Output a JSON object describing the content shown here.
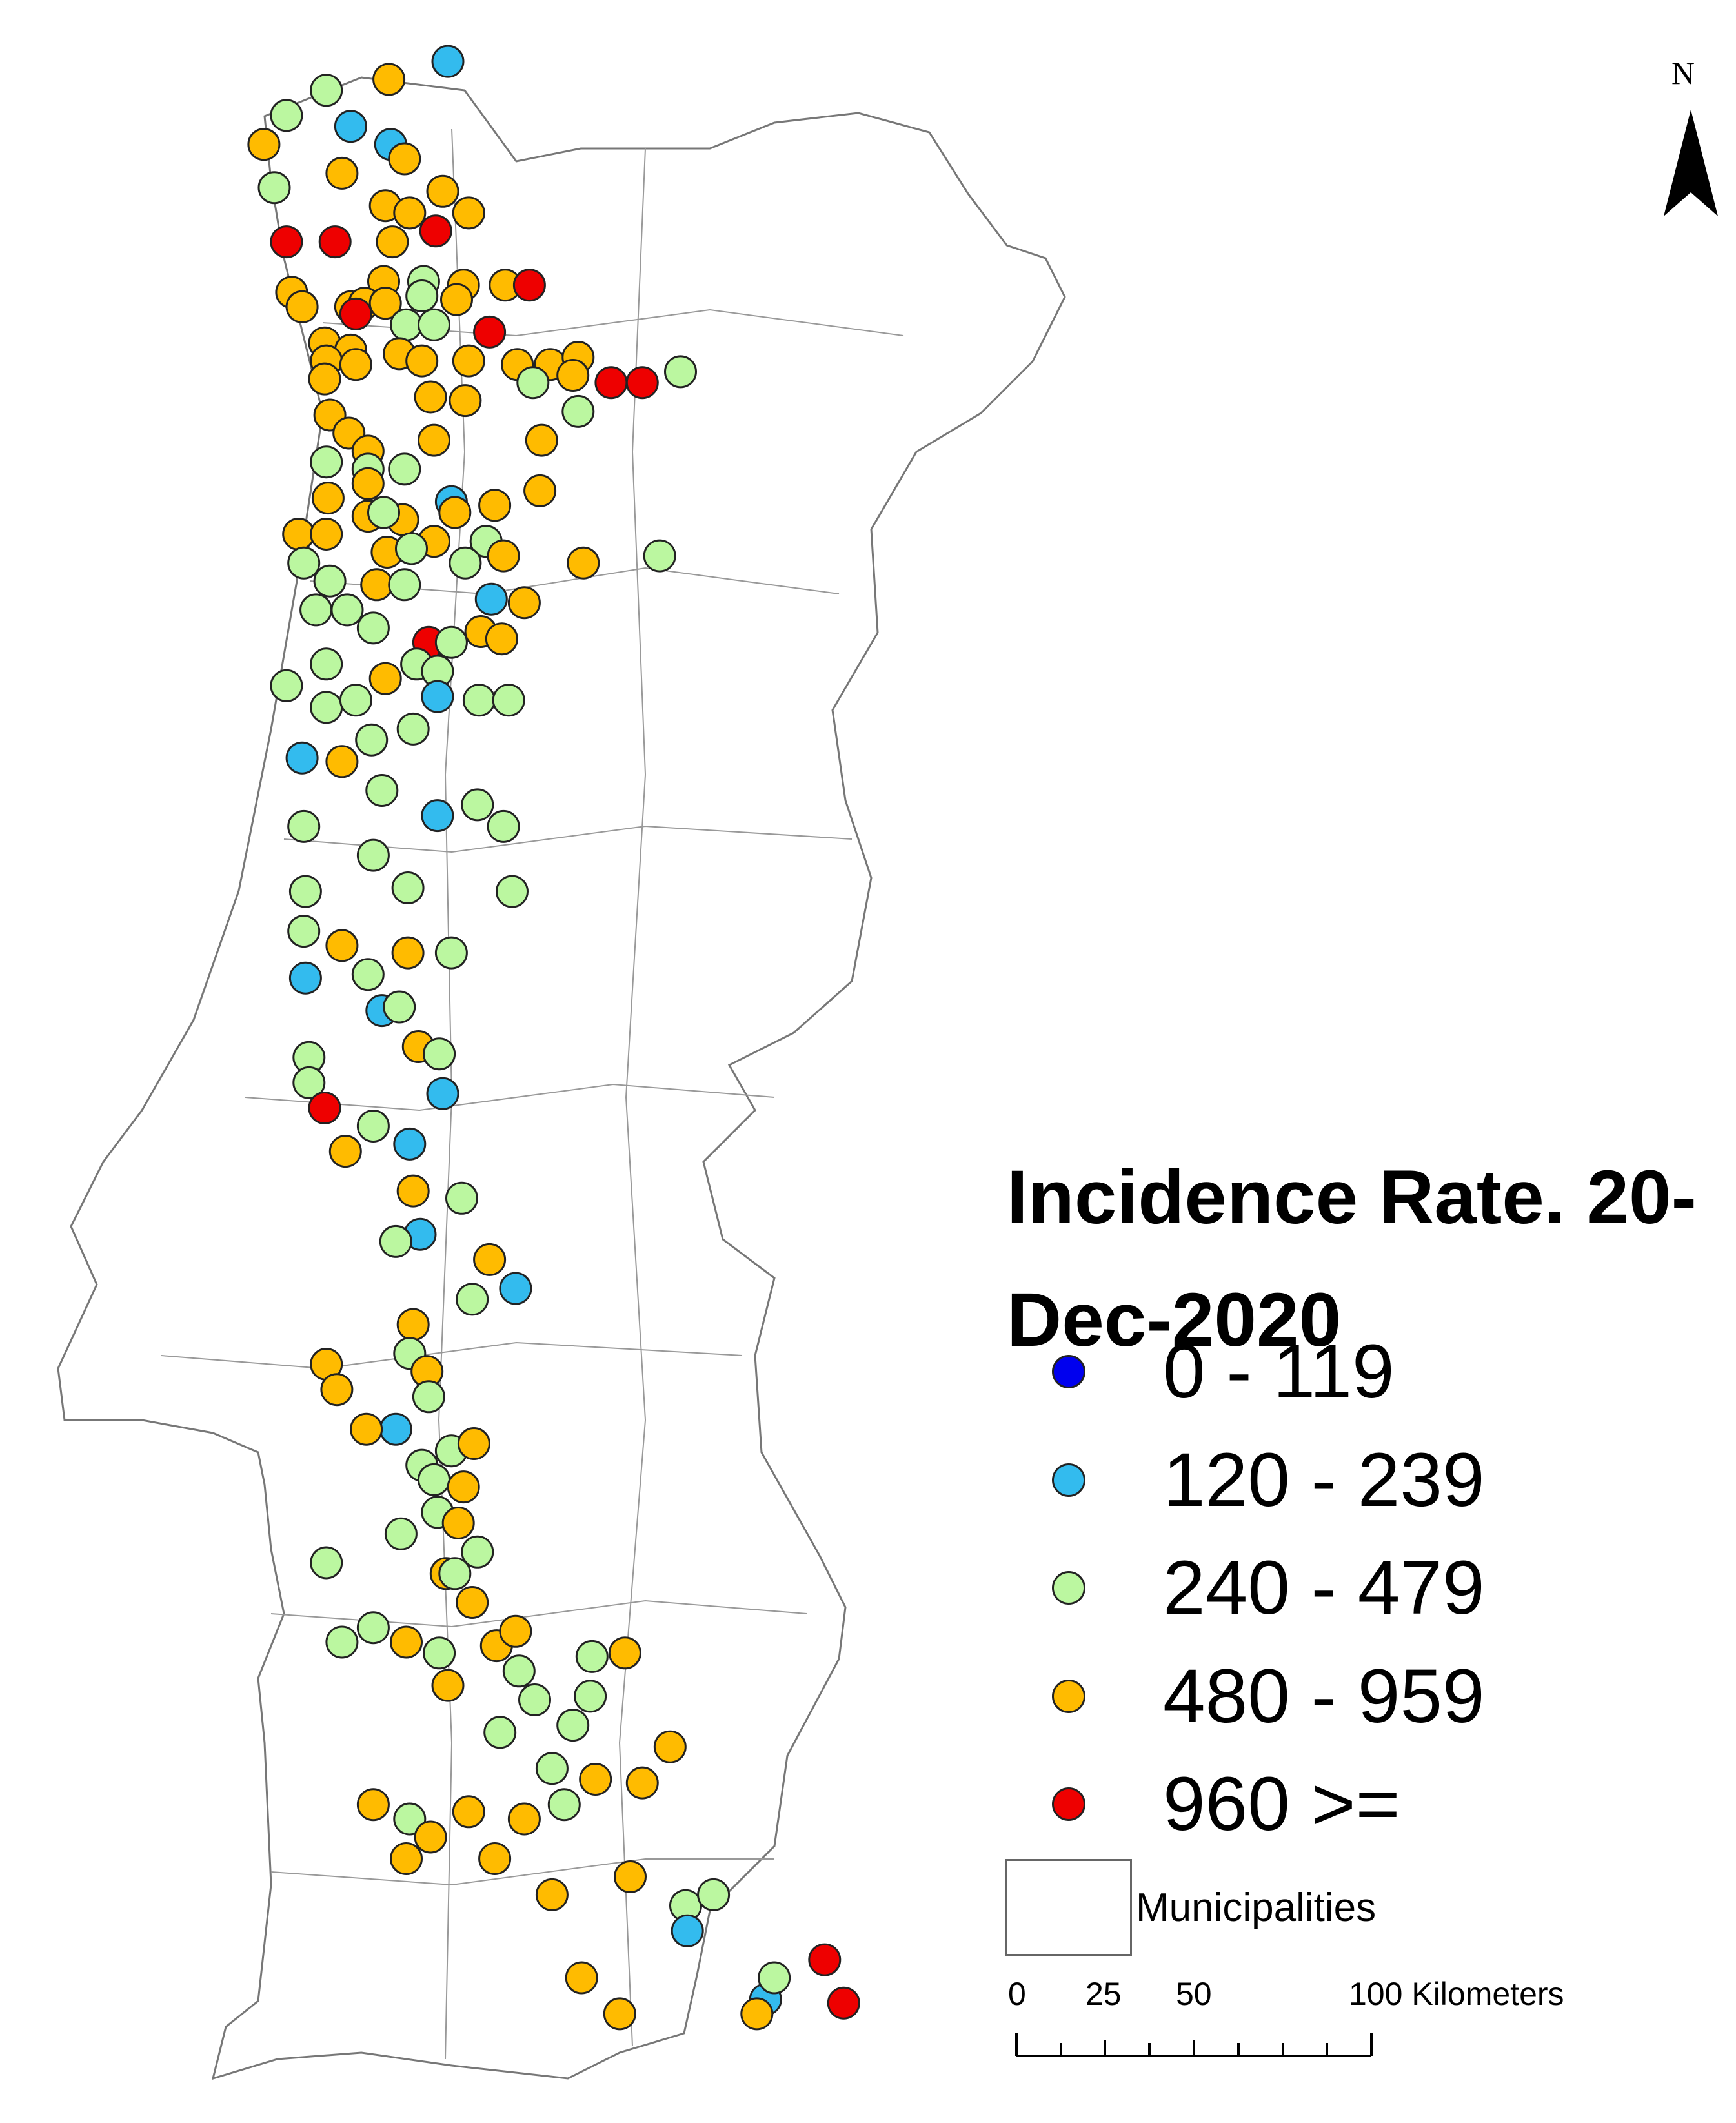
{
  "legend": {
    "title": "Incidence Rate. 20-Dec-2020",
    "classes": [
      {
        "label": "0 - 119",
        "color": "#0000ee"
      },
      {
        "label": "120 - 239",
        "color": "#33bbee"
      },
      {
        "label": "240 - 479",
        "color": "#bbf7a0"
      },
      {
        "label": "480 - 959",
        "color": "#ffbb00"
      },
      {
        "label": "960 >=",
        "color": "#ee0000"
      }
    ],
    "municipalities_label": "Municipalities"
  },
  "scale_bar": {
    "ticks": [
      "0",
      "25",
      "50",
      "100"
    ],
    "unit": "Kilometers"
  },
  "north_arrow": {
    "label": "N",
    "icon": "north-arrow-icon"
  },
  "map": {
    "region": "Portugal mainland municipalities",
    "outline_color": "#777777"
  },
  "chart_data": {
    "type": "scatter",
    "title": "Incidence Rate. 20-Dec-2020",
    "classes": [
      "0 - 119",
      "120 - 239",
      "240 - 479",
      "480 - 959",
      "960 >="
    ],
    "points": [
      [
        0.258,
        0.017,
        1
      ],
      [
        0.224,
        0.022,
        3
      ],
      [
        0.188,
        0.025,
        2
      ],
      [
        0.165,
        0.032,
        2
      ],
      [
        0.202,
        0.035,
        1
      ],
      [
        0.225,
        0.04,
        1
      ],
      [
        0.233,
        0.044,
        3
      ],
      [
        0.152,
        0.04,
        3
      ],
      [
        0.197,
        0.048,
        3
      ],
      [
        0.158,
        0.052,
        2
      ],
      [
        0.255,
        0.053,
        3
      ],
      [
        0.222,
        0.057,
        3
      ],
      [
        0.236,
        0.059,
        3
      ],
      [
        0.27,
        0.059,
        3
      ],
      [
        0.165,
        0.067,
        4
      ],
      [
        0.193,
        0.067,
        4
      ],
      [
        0.226,
        0.067,
        3
      ],
      [
        0.251,
        0.064,
        4
      ],
      [
        0.221,
        0.078,
        3
      ],
      [
        0.244,
        0.078,
        2
      ],
      [
        0.267,
        0.079,
        3
      ],
      [
        0.291,
        0.079,
        3
      ],
      [
        0.305,
        0.079,
        4
      ],
      [
        0.168,
        0.081,
        3
      ],
      [
        0.174,
        0.085,
        3
      ],
      [
        0.202,
        0.085,
        3
      ],
      [
        0.21,
        0.084,
        3
      ],
      [
        0.222,
        0.084,
        3
      ],
      [
        0.243,
        0.082,
        2
      ],
      [
        0.263,
        0.083,
        3
      ],
      [
        0.205,
        0.087,
        4
      ],
      [
        0.234,
        0.09,
        2
      ],
      [
        0.25,
        0.09,
        2
      ],
      [
        0.282,
        0.092,
        4
      ],
      [
        0.187,
        0.095,
        3
      ],
      [
        0.202,
        0.097,
        3
      ],
      [
        0.188,
        0.1,
        3
      ],
      [
        0.23,
        0.098,
        3
      ],
      [
        0.243,
        0.1,
        3
      ],
      [
        0.27,
        0.1,
        3
      ],
      [
        0.298,
        0.101,
        3
      ],
      [
        0.317,
        0.101,
        3
      ],
      [
        0.333,
        0.099,
        3
      ],
      [
        0.187,
        0.105,
        3
      ],
      [
        0.205,
        0.101,
        3
      ],
      [
        0.248,
        0.11,
        3
      ],
      [
        0.268,
        0.111,
        3
      ],
      [
        0.307,
        0.106,
        2
      ],
      [
        0.33,
        0.104,
        3
      ],
      [
        0.352,
        0.106,
        4
      ],
      [
        0.37,
        0.106,
        4
      ],
      [
        0.392,
        0.103,
        2
      ],
      [
        0.19,
        0.115,
        3
      ],
      [
        0.201,
        0.12,
        3
      ],
      [
        0.212,
        0.125,
        3
      ],
      [
        0.25,
        0.122,
        3
      ],
      [
        0.312,
        0.122,
        3
      ],
      [
        0.333,
        0.114,
        2
      ],
      [
        0.188,
        0.128,
        2
      ],
      [
        0.212,
        0.13,
        2
      ],
      [
        0.212,
        0.134,
        3
      ],
      [
        0.233,
        0.13,
        2
      ],
      [
        0.189,
        0.138,
        3
      ],
      [
        0.232,
        0.144,
        3
      ],
      [
        0.26,
        0.139,
        1
      ],
      [
        0.285,
        0.14,
        3
      ],
      [
        0.311,
        0.136,
        3
      ],
      [
        0.172,
        0.148,
        3
      ],
      [
        0.188,
        0.148,
        3
      ],
      [
        0.212,
        0.143,
        3
      ],
      [
        0.221,
        0.142,
        2
      ],
      [
        0.25,
        0.15,
        3
      ],
      [
        0.262,
        0.142,
        3
      ],
      [
        0.175,
        0.156,
        2
      ],
      [
        0.19,
        0.161,
        2
      ],
      [
        0.223,
        0.153,
        3
      ],
      [
        0.237,
        0.152,
        2
      ],
      [
        0.28,
        0.15,
        2
      ],
      [
        0.217,
        0.162,
        3
      ],
      [
        0.233,
        0.162,
        2
      ],
      [
        0.268,
        0.156,
        2
      ],
      [
        0.29,
        0.154,
        3
      ],
      [
        0.336,
        0.156,
        3
      ],
      [
        0.38,
        0.154,
        2
      ],
      [
        0.182,
        0.169,
        2
      ],
      [
        0.2,
        0.169,
        2
      ],
      [
        0.215,
        0.174,
        2
      ],
      [
        0.283,
        0.166,
        1
      ],
      [
        0.302,
        0.167,
        3
      ],
      [
        0.247,
        0.178,
        4
      ],
      [
        0.26,
        0.178,
        2
      ],
      [
        0.277,
        0.175,
        3
      ],
      [
        0.289,
        0.177,
        3
      ],
      [
        0.165,
        0.19,
        2
      ],
      [
        0.188,
        0.184,
        2
      ],
      [
        0.222,
        0.188,
        3
      ],
      [
        0.24,
        0.184,
        2
      ],
      [
        0.252,
        0.186,
        2
      ],
      [
        0.252,
        0.193,
        1
      ],
      [
        0.276,
        0.194,
        2
      ],
      [
        0.293,
        0.194,
        2
      ],
      [
        0.188,
        0.196,
        2
      ],
      [
        0.205,
        0.194,
        2
      ],
      [
        0.238,
        0.202,
        2
      ],
      [
        0.174,
        0.21,
        1
      ],
      [
        0.197,
        0.211,
        3
      ],
      [
        0.214,
        0.205,
        2
      ],
      [
        0.175,
        0.229,
        2
      ],
      [
        0.22,
        0.219,
        2
      ],
      [
        0.252,
        0.226,
        1
      ],
      [
        0.275,
        0.223,
        2
      ],
      [
        0.29,
        0.229,
        2
      ],
      [
        0.215,
        0.237,
        2
      ],
      [
        0.176,
        0.247,
        2
      ],
      [
        0.235,
        0.246,
        2
      ],
      [
        0.295,
        0.247,
        2
      ],
      [
        0.175,
        0.258,
        2
      ],
      [
        0.197,
        0.262,
        3
      ],
      [
        0.212,
        0.27,
        2
      ],
      [
        0.235,
        0.264,
        3
      ],
      [
        0.26,
        0.264,
        2
      ],
      [
        0.176,
        0.271,
        1
      ],
      [
        0.22,
        0.28,
        1
      ],
      [
        0.23,
        0.279,
        2
      ],
      [
        0.178,
        0.293,
        2
      ],
      [
        0.178,
        0.3,
        2
      ],
      [
        0.241,
        0.29,
        3
      ],
      [
        0.253,
        0.292,
        2
      ],
      [
        0.255,
        0.303,
        1
      ],
      [
        0.187,
        0.307,
        4
      ],
      [
        0.215,
        0.312,
        2
      ],
      [
        0.199,
        0.319,
        3
      ],
      [
        0.236,
        0.317,
        1
      ],
      [
        0.238,
        0.33,
        3
      ],
      [
        0.266,
        0.332,
        2
      ],
      [
        0.242,
        0.342,
        1
      ],
      [
        0.228,
        0.344,
        2
      ],
      [
        0.282,
        0.349,
        3
      ],
      [
        0.297,
        0.357,
        1
      ],
      [
        0.272,
        0.36,
        2
      ],
      [
        0.238,
        0.367,
        3
      ],
      [
        0.236,
        0.375,
        2
      ],
      [
        0.188,
        0.378,
        3
      ],
      [
        0.194,
        0.385,
        3
      ],
      [
        0.246,
        0.38,
        3
      ],
      [
        0.247,
        0.387,
        2
      ],
      [
        0.228,
        0.396,
        1
      ],
      [
        0.211,
        0.396,
        3
      ],
      [
        0.26,
        0.402,
        2
      ],
      [
        0.273,
        0.4,
        3
      ],
      [
        0.243,
        0.406,
        2
      ],
      [
        0.25,
        0.41,
        2
      ],
      [
        0.267,
        0.412,
        3
      ],
      [
        0.252,
        0.419,
        2
      ],
      [
        0.264,
        0.422,
        3
      ],
      [
        0.231,
        0.425,
        2
      ],
      [
        0.275,
        0.43,
        2
      ],
      [
        0.188,
        0.433,
        2
      ],
      [
        0.257,
        0.436,
        3
      ],
      [
        0.262,
        0.436,
        2
      ],
      [
        0.272,
        0.444,
        3
      ],
      [
        0.215,
        0.451,
        2
      ],
      [
        0.197,
        0.455,
        2
      ],
      [
        0.234,
        0.455,
        3
      ],
      [
        0.253,
        0.458,
        2
      ],
      [
        0.286,
        0.456,
        3
      ],
      [
        0.297,
        0.452,
        3
      ],
      [
        0.299,
        0.463,
        2
      ],
      [
        0.341,
        0.459,
        2
      ],
      [
        0.36,
        0.458,
        3
      ],
      [
        0.34,
        0.47,
        2
      ],
      [
        0.258,
        0.467,
        3
      ],
      [
        0.308,
        0.471,
        2
      ],
      [
        0.288,
        0.48,
        2
      ],
      [
        0.33,
        0.478,
        2
      ],
      [
        0.318,
        0.49,
        2
      ],
      [
        0.343,
        0.493,
        3
      ],
      [
        0.37,
        0.494,
        3
      ],
      [
        0.386,
        0.484,
        3
      ],
      [
        0.215,
        0.5,
        3
      ],
      [
        0.236,
        0.504,
        2
      ],
      [
        0.248,
        0.509,
        3
      ],
      [
        0.27,
        0.502,
        3
      ],
      [
        0.302,
        0.504,
        3
      ],
      [
        0.325,
        0.5,
        2
      ],
      [
        0.234,
        0.515,
        3
      ],
      [
        0.285,
        0.515,
        3
      ],
      [
        0.318,
        0.525,
        3
      ],
      [
        0.363,
        0.52,
        3
      ],
      [
        0.395,
        0.528,
        2
      ],
      [
        0.396,
        0.535,
        1
      ],
      [
        0.411,
        0.525,
        2
      ],
      [
        0.335,
        0.548,
        3
      ],
      [
        0.357,
        0.558,
        3
      ],
      [
        0.441,
        0.554,
        1
      ],
      [
        0.446,
        0.548,
        2
      ],
      [
        0.436,
        0.558,
        3
      ],
      [
        0.475,
        0.543,
        4
      ],
      [
        0.486,
        0.555,
        4
      ]
    ]
  }
}
